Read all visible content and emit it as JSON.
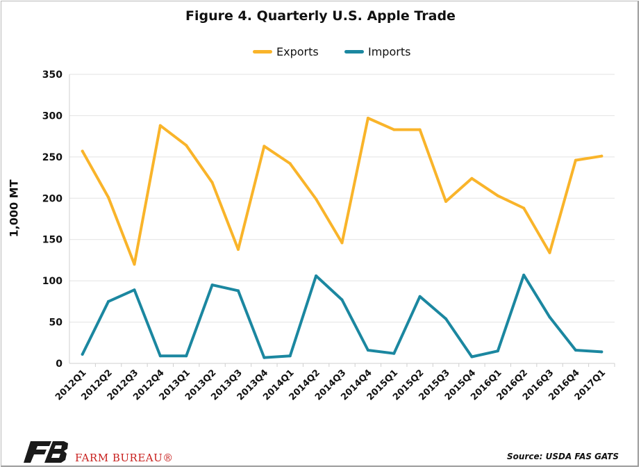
{
  "chart_data": {
    "type": "line",
    "title": "Figure 4. Quarterly U.S. Apple Trade",
    "ylabel": "1,000 MT",
    "xlabel": "",
    "ylim": [
      0,
      350
    ],
    "yticks": [
      0,
      50,
      100,
      150,
      200,
      250,
      300,
      350
    ],
    "legend_position": "top-center",
    "grid": true,
    "categories": [
      "2012Q1",
      "2012Q2",
      "2012Q3",
      "2012Q4",
      "2013Q1",
      "2013Q2",
      "2013Q3",
      "2013Q4",
      "2014Q1",
      "2014Q2",
      "2014Q3",
      "2014Q4",
      "2015Q1",
      "2015Q2",
      "2015Q3",
      "2015Q4",
      "2016Q1",
      "2016Q2",
      "2016Q3",
      "2016Q4",
      "2017Q1"
    ],
    "series": [
      {
        "name": "Exports",
        "color": "#f9b42a",
        "values": [
          257,
          201,
          120,
          288,
          264,
          219,
          138,
          263,
          242,
          199,
          146,
          297,
          283,
          283,
          196,
          224,
          203,
          188,
          134,
          246,
          251
        ]
      },
      {
        "name": "Imports",
        "color": "#1b87a0",
        "values": [
          11,
          75,
          89,
          9,
          9,
          95,
          88,
          7,
          9,
          106,
          77,
          16,
          12,
          81,
          54,
          8,
          15,
          107,
          56,
          16,
          14
        ]
      }
    ]
  },
  "source": "Source: USDA FAS GATS",
  "brand": {
    "name": "FARM BUREAU®",
    "logo_text": "FB",
    "color": "#c8201e"
  }
}
